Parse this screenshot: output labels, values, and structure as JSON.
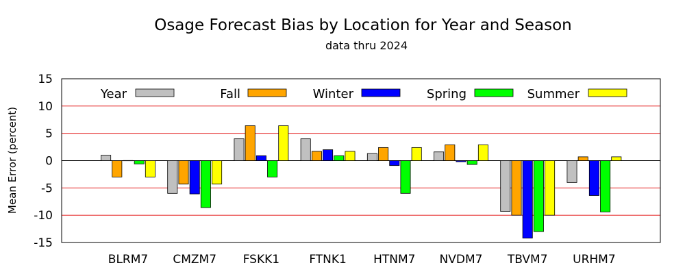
{
  "chart_data": {
    "type": "bar",
    "title": "Osage Forecast Bias by Location for Year and Season",
    "subtitle": "data thru 2024",
    "ylabel": "Mean Error (percent)",
    "ylim": [
      -15,
      15
    ],
    "yticks": [
      15,
      10,
      5,
      0,
      -5,
      -10,
      -15
    ],
    "grid": "horizontal red lines at 10, 5, 0, -5, -10",
    "legend_placement": "top",
    "categories": [
      "BLRM7",
      "CMZM7",
      "FSKK1",
      "FTNK1",
      "HTNM7",
      "NVDM7",
      "TBVM7",
      "URHM7"
    ],
    "series": [
      {
        "name": "Year",
        "color": "#c0c0c0",
        "values": [
          1.0,
          -6.0,
          4.0,
          4.0,
          1.3,
          1.6,
          -9.3,
          -4.0
        ]
      },
      {
        "name": "Fall",
        "color": "#ffa500",
        "values": [
          -3.0,
          -4.3,
          6.4,
          1.7,
          2.4,
          2.9,
          -10.0,
          0.7
        ]
      },
      {
        "name": "Winter",
        "color": "#0000ff",
        "values": [
          0.0,
          -6.1,
          0.9,
          2.0,
          -0.9,
          -0.2,
          -14.2,
          -6.4
        ]
      },
      {
        "name": "Spring",
        "color": "#00ff00",
        "values": [
          -0.6,
          -8.6,
          -3.0,
          0.9,
          -6.0,
          -0.7,
          -13.0,
          -9.4
        ]
      },
      {
        "name": "Summer",
        "color": "#ffff00",
        "values": [
          -3.0,
          -4.3,
          6.4,
          1.7,
          2.4,
          2.9,
          -10.0,
          0.7
        ]
      }
    ]
  }
}
